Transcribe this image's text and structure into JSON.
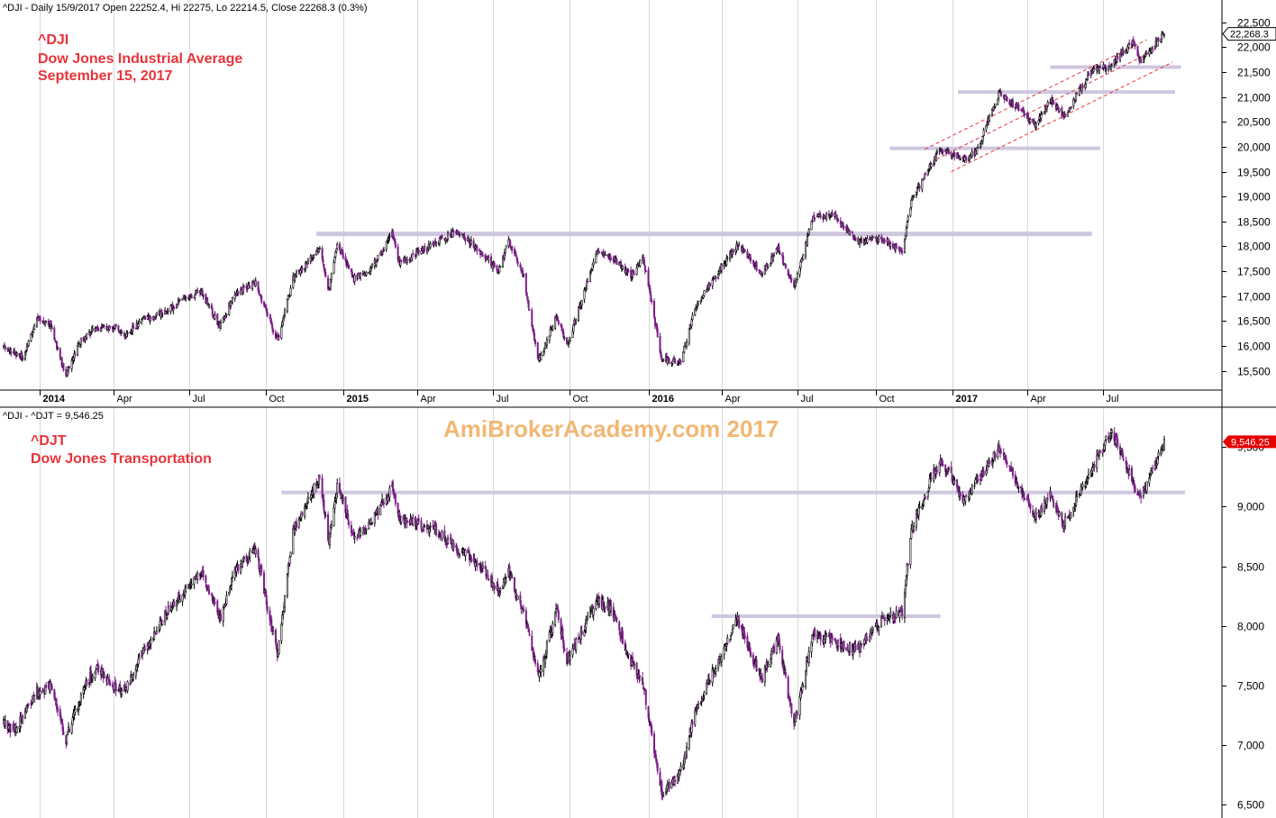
{
  "window": {
    "top_header": "^DJI - Daily 15/9/2017 Open 22252.4, Hi 22275, Lo 22214.5, Close 22268.3 (0.3%)",
    "bottom_header": "^DJI - ^DJT = 9,546.25",
    "watermark": "AmiBroker​Academy.com   2017"
  },
  "colors": {
    "up_candle": "#000000",
    "down_candle": "#7a1f86",
    "support_line": "#cfc6e0",
    "channel_line": "#e8333a",
    "title_text": "#e8333a",
    "watermark": "#f2b774",
    "last_price_badge": "#e60000",
    "grid_line": "#d9d9d9"
  },
  "chart_data": [
    {
      "type": "candlestick",
      "panel": "top",
      "title_lines": [
        "^DJI",
        "Dow Jones Industrial Average",
        "September 15, 2017"
      ],
      "ylim": [
        15150,
        22550
      ],
      "y_ticks": [
        15500,
        16000,
        16500,
        17000,
        17500,
        18000,
        18500,
        19000,
        19500,
        20000,
        20500,
        21000,
        21500,
        22000,
        22500
      ],
      "y_tick_labels": [
        "15,500",
        "16,000",
        "16,500",
        "17,000",
        "17,500",
        "18,000",
        "18,500",
        "19,000",
        "19,500",
        "20,000",
        "20,500",
        "21,000",
        "21,500",
        "22,000",
        "22,500"
      ],
      "x_ticks": [
        {
          "label": "2014",
          "date": "2014-01-02",
          "year": true
        },
        {
          "label": "Apr",
          "date": "2014-04-01"
        },
        {
          "label": "Jul",
          "date": "2014-07-01"
        },
        {
          "label": "Oct",
          "date": "2014-10-01"
        },
        {
          "label": "2015",
          "date": "2015-01-02",
          "year": true
        },
        {
          "label": "Apr",
          "date": "2015-04-01"
        },
        {
          "label": "Jul",
          "date": "2015-07-01"
        },
        {
          "label": "Oct",
          "date": "2015-10-01"
        },
        {
          "label": "2016",
          "date": "2016-01-04",
          "year": true
        },
        {
          "label": "Apr",
          "date": "2016-04-01"
        },
        {
          "label": "Jul",
          "date": "2016-07-01"
        },
        {
          "label": "Oct",
          "date": "2016-10-03"
        },
        {
          "label": "2017",
          "date": "2017-01-03",
          "year": true
        },
        {
          "label": "Apr",
          "date": "2017-04-03"
        },
        {
          "label": "Jul",
          "date": "2017-07-03"
        }
      ],
      "series": [
        {
          "type": "close",
          "points": [
            [
              "2013-11-20",
              16000
            ],
            [
              "2013-12-02",
              15880
            ],
            [
              "2013-12-13",
              15760
            ],
            [
              "2013-12-31",
              16580
            ],
            [
              "2014-01-15",
              16450
            ],
            [
              "2014-02-03",
              15380
            ],
            [
              "2014-02-20",
              16100
            ],
            [
              "2014-03-10",
              16350
            ],
            [
              "2014-04-01",
              16400
            ],
            [
              "2014-04-15",
              16200
            ],
            [
              "2014-05-05",
              16500
            ],
            [
              "2014-06-02",
              16700
            ],
            [
              "2014-06-20",
              16900
            ],
            [
              "2014-07-15",
              17100
            ],
            [
              "2014-08-07",
              16400
            ],
            [
              "2014-08-25",
              17050
            ],
            [
              "2014-09-19",
              17250
            ],
            [
              "2014-10-15",
              16100
            ],
            [
              "2014-11-03",
              17350
            ],
            [
              "2014-12-05",
              17950
            ],
            [
              "2014-12-16",
              17100
            ],
            [
              "2014-12-26",
              18050
            ],
            [
              "2015-01-15",
              17350
            ],
            [
              "2015-02-02",
              17500
            ],
            [
              "2015-03-02",
              18250
            ],
            [
              "2015-03-11",
              17650
            ],
            [
              "2015-04-24",
              18100
            ],
            [
              "2015-05-19",
              18300
            ],
            [
              "2015-06-10",
              18000
            ],
            [
              "2015-07-08",
              17500
            ],
            [
              "2015-07-20",
              18100
            ],
            [
              "2015-08-07",
              17400
            ],
            [
              "2015-08-25",
              15700
            ],
            [
              "2015-09-16",
              16600
            ],
            [
              "2015-09-28",
              16000
            ],
            [
              "2015-11-03",
              17900
            ],
            [
              "2015-11-20",
              17800
            ],
            [
              "2015-12-14",
              17400
            ],
            [
              "2015-12-29",
              17750
            ],
            [
              "2016-01-20",
              15750
            ],
            [
              "2016-02-11",
              15650
            ],
            [
              "2016-03-01",
              16800
            ],
            [
              "2016-04-20",
              18050
            ],
            [
              "2016-05-19",
              17450
            ],
            [
              "2016-06-08",
              17950
            ],
            [
              "2016-06-27",
              17150
            ],
            [
              "2016-07-20",
              18600
            ],
            [
              "2016-08-15",
              18600
            ],
            [
              "2016-09-12",
              18100
            ],
            [
              "2016-10-11",
              18150
            ],
            [
              "2016-11-04",
              17900
            ],
            [
              "2016-11-15",
              18900
            ],
            [
              "2016-12-07",
              19600
            ],
            [
              "2016-12-20",
              19950
            ],
            [
              "2017-01-19",
              19750
            ],
            [
              "2017-02-01",
              19900
            ],
            [
              "2017-03-01",
              21100
            ],
            [
              "2017-04-13",
              20450
            ],
            [
              "2017-05-01",
              20950
            ],
            [
              "2017-05-17",
              20600
            ],
            [
              "2017-06-19",
              21500
            ],
            [
              "2017-07-14",
              21650
            ],
            [
              "2017-08-08",
              22100
            ],
            [
              "2017-08-18",
              21700
            ],
            [
              "2017-09-15",
              22268
            ]
          ]
        },
        {
          "type": "support",
          "level": 18250,
          "from": "2014-12-01",
          "to": "2017-06-20"
        },
        {
          "type": "support",
          "level": 19970,
          "from": "2016-10-20",
          "to": "2017-06-30"
        },
        {
          "type": "support",
          "level": 21100,
          "from": "2017-01-10",
          "to": "2017-09-28"
        },
        {
          "type": "support",
          "level": 21600,
          "from": "2017-05-01",
          "to": "2017-10-05"
        },
        {
          "type": "channel",
          "from": [
            "2016-12-01",
            19950
          ],
          "to": [
            "2017-08-25",
            22150
          ]
        },
        {
          "type": "channel",
          "from": [
            "2016-12-15",
            19750
          ],
          "to": [
            "2017-09-05",
            21950
          ]
        },
        {
          "type": "channel",
          "from": [
            "2017-01-02",
            19500
          ],
          "to": [
            "2017-09-25",
            21700
          ]
        }
      ],
      "last_value_label": "22,268.3",
      "last_value": 22268.3
    },
    {
      "type": "candlestick",
      "panel": "bottom",
      "title_lines": [
        "^DJT",
        "Dow Jones Transportation"
      ],
      "ylim": [
        6400,
        9700
      ],
      "y_ticks": [
        6500,
        7000,
        7500,
        8000,
        8500,
        9000,
        9500
      ],
      "y_tick_labels": [
        "6,500",
        "7,000",
        "7,500",
        "8,000",
        "8,500",
        "9,000",
        "9,500"
      ],
      "series": [
        {
          "type": "close",
          "points": [
            [
              "2013-11-20",
              7200
            ],
            [
              "2013-12-02",
              7100
            ],
            [
              "2013-12-13",
              7250
            ],
            [
              "2013-12-31",
              7450
            ],
            [
              "2014-01-15",
              7500
            ],
            [
              "2014-02-03",
              7050
            ],
            [
              "2014-02-20",
              7400
            ],
            [
              "2014-03-10",
              7650
            ],
            [
              "2014-04-01",
              7500
            ],
            [
              "2014-04-15",
              7450
            ],
            [
              "2014-05-05",
              7750
            ],
            [
              "2014-06-02",
              8100
            ],
            [
              "2014-06-20",
              8250
            ],
            [
              "2014-07-15",
              8450
            ],
            [
              "2014-08-07",
              8050
            ],
            [
              "2014-08-25",
              8450
            ],
            [
              "2014-09-19",
              8650
            ],
            [
              "2014-10-15",
              7750
            ],
            [
              "2014-11-03",
              8800
            ],
            [
              "2014-12-05",
              9250
            ],
            [
              "2014-12-16",
              8700
            ],
            [
              "2014-12-26",
              9200
            ],
            [
              "2015-01-15",
              8750
            ],
            [
              "2015-02-02",
              8850
            ],
            [
              "2015-03-02",
              9150
            ],
            [
              "2015-03-11",
              8900
            ],
            [
              "2015-04-24",
              8800
            ],
            [
              "2015-05-19",
              8650
            ],
            [
              "2015-06-10",
              8550
            ],
            [
              "2015-07-08",
              8300
            ],
            [
              "2015-07-20",
              8450
            ],
            [
              "2015-08-07",
              8100
            ],
            [
              "2015-08-25",
              7550
            ],
            [
              "2015-09-16",
              8150
            ],
            [
              "2015-09-28",
              7700
            ],
            [
              "2015-11-03",
              8200
            ],
            [
              "2015-11-20",
              8150
            ],
            [
              "2015-12-14",
              7700
            ],
            [
              "2015-12-29",
              7500
            ],
            [
              "2016-01-20",
              6600
            ],
            [
              "2016-02-11",
              6750
            ],
            [
              "2016-03-01",
              7300
            ],
            [
              "2016-04-20",
              8050
            ],
            [
              "2016-05-19",
              7550
            ],
            [
              "2016-06-08",
              7900
            ],
            [
              "2016-06-27",
              7150
            ],
            [
              "2016-07-20",
              7950
            ],
            [
              "2016-08-15",
              7850
            ],
            [
              "2016-09-12",
              7800
            ],
            [
              "2016-10-11",
              8050
            ],
            [
              "2016-11-04",
              8100
            ],
            [
              "2016-11-15",
              8800
            ],
            [
              "2016-12-07",
              9200
            ],
            [
              "2016-12-20",
              9400
            ],
            [
              "2017-01-19",
              9050
            ],
            [
              "2017-02-01",
              9200
            ],
            [
              "2017-03-01",
              9500
            ],
            [
              "2017-04-13",
              8900
            ],
            [
              "2017-05-01",
              9100
            ],
            [
              "2017-05-17",
              8850
            ],
            [
              "2017-06-19",
              9300
            ],
            [
              "2017-07-14",
              9650
            ],
            [
              "2017-08-08",
              9200
            ],
            [
              "2017-08-18",
              9050
            ],
            [
              "2017-09-15",
              9546
            ]
          ]
        },
        {
          "type": "support",
          "level": 9120,
          "from": "2014-10-20",
          "to": "2017-10-10"
        },
        {
          "type": "support",
          "level": 8080,
          "from": "2016-03-20",
          "to": "2016-12-20"
        }
      ],
      "last_value_label": "9,546.25",
      "last_value": 9546.25
    }
  ]
}
